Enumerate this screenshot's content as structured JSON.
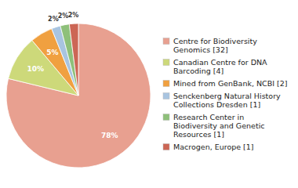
{
  "chart_data": {
    "type": "pie",
    "categories": [
      "Centre for Biodiversity\nGenomics [32]",
      "Canadian Centre for DNA\nBarcoding [4]",
      "Mined from GenBank, NCBI [2]",
      "Senckenberg Natural History\nCollections Dresden [1]",
      "Research Center in\nBiodiversity and Genetic\nResources [1]",
      "Macrogen, Europe [1]"
    ],
    "values": [
      78,
      10,
      5,
      2,
      2,
      2
    ],
    "value_labels": [
      "78%",
      "10%",
      "5%",
      "2%",
      "2%",
      "2%"
    ],
    "colors": [
      "#e8a090",
      "#cdd97a",
      "#f0a040",
      "#a8c4e0",
      "#8ec07a",
      "#cc6655"
    ],
    "data_labels": true,
    "legend": "right"
  }
}
